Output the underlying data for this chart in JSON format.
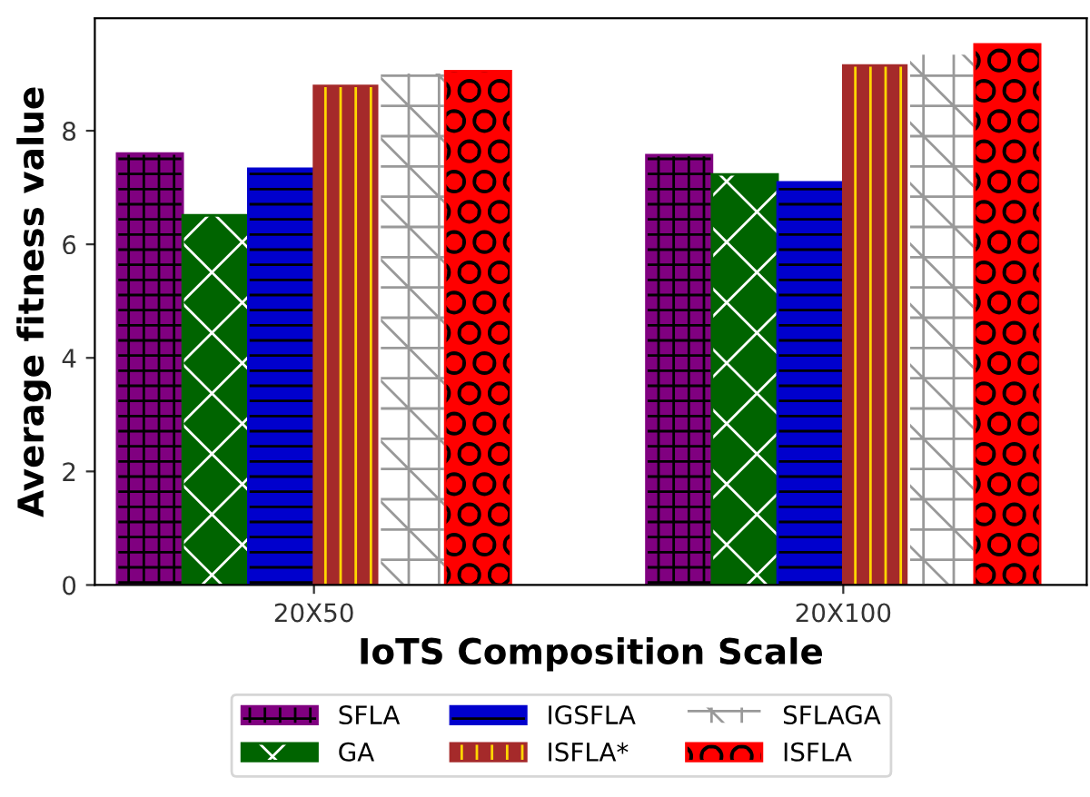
{
  "chart_data": {
    "type": "bar",
    "xlabel": "IoTS Composition Scale",
    "ylabel": "Average fitness value",
    "categories": [
      "20X50",
      "20X100"
    ],
    "series": [
      {
        "name": "SFLA",
        "color": "#800080",
        "values": [
          7.6,
          7.57
        ]
      },
      {
        "name": "GA",
        "color": "#006400",
        "values": [
          6.51,
          7.23
        ]
      },
      {
        "name": "IGSFLA",
        "color": "#0000cd",
        "values": [
          7.33,
          7.09
        ]
      },
      {
        "name": "ISFLA*",
        "color": "#a52a2a",
        "values": [
          8.79,
          9.15
        ]
      },
      {
        "name": "SFLAGA",
        "color": "#ffffff",
        "values": [
          9.03,
          9.36
        ]
      },
      {
        "name": "ISFLA",
        "color": "#ff0000",
        "values": [
          9.05,
          9.52
        ]
      }
    ],
    "ylim": [
      0,
      9.98
    ],
    "yticks": [
      0,
      2,
      4,
      6,
      8
    ],
    "grid": false,
    "legend": "bottom"
  }
}
